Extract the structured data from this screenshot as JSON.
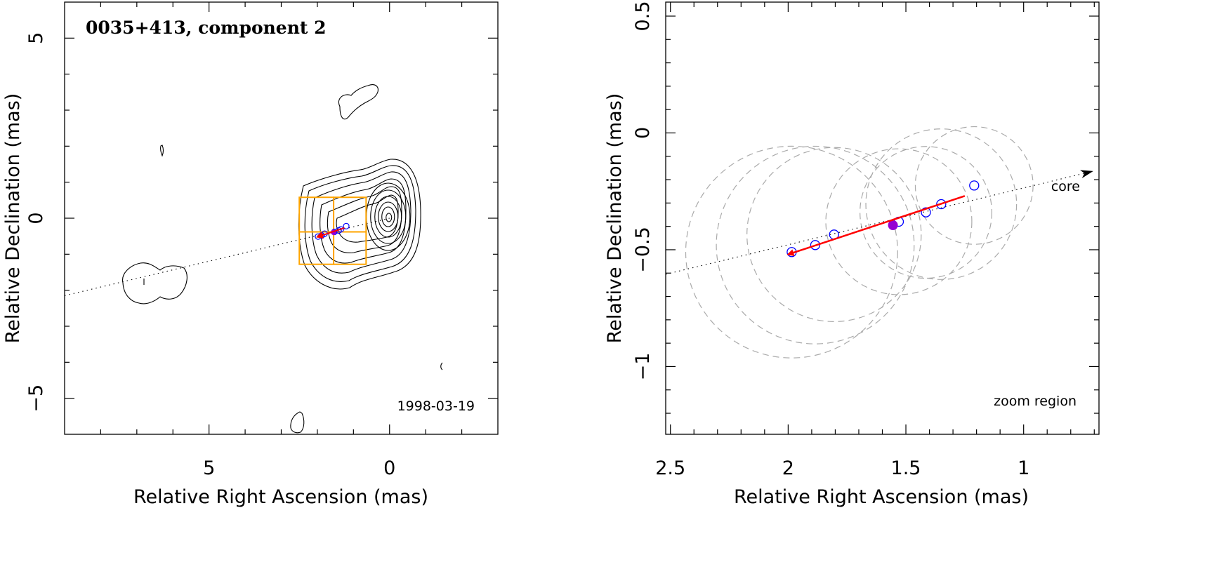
{
  "chart_data": [
    {
      "type": "contour",
      "title": "0035+413, component 2",
      "annotation": "1998-03-19",
      "xlabel": "Relative Right Ascension (mas)",
      "ylabel": "Relative Declination (mas)",
      "xlim": [
        9.0,
        -3.0
      ],
      "ylim": [
        -6.0,
        6.0
      ],
      "xticks": [
        5,
        0
      ],
      "xtick_labels": [
        "5",
        "0"
      ],
      "yticks": [
        5,
        0,
        -5
      ],
      "ytick_labels": [
        "5",
        "0",
        "−5"
      ],
      "x_reversed": true,
      "grid": false,
      "core": {
        "x": 0.0,
        "y": 0.0
      },
      "contour_levels": 9,
      "jet_axis": {
        "from": [
          9.0,
          -2.15
        ],
        "to": [
          0.0,
          0.0
        ]
      },
      "zoom_boxes": [
        {
          "x0": 2.5,
          "x1": 1.55,
          "y0": -0.38,
          "y1": 0.58
        },
        {
          "x0": 1.55,
          "x1": 0.65,
          "y0": -0.38,
          "y1": 0.58
        },
        {
          "x0": 2.5,
          "x1": 1.55,
          "y0": -1.28,
          "y1": -0.38
        },
        {
          "x0": 1.55,
          "x1": 0.65,
          "y0": -1.28,
          "y1": -0.38
        }
      ],
      "components": [
        {
          "x": 1.2,
          "y": -0.22
        },
        {
          "x": 1.35,
          "y": -0.31
        },
        {
          "x": 1.41,
          "y": -0.34
        },
        {
          "x": 1.53,
          "y": -0.38
        },
        {
          "x": 1.8,
          "y": -0.43
        },
        {
          "x": 1.88,
          "y": -0.48
        },
        {
          "x": 1.98,
          "y": -0.51
        }
      ],
      "highlight": {
        "x": 1.55,
        "y": -0.39
      },
      "velocity_arrow": {
        "from": [
          1.25,
          -0.27
        ],
        "to": [
          2.0,
          -0.52
        ]
      }
    },
    {
      "type": "scatter",
      "annotation": "zoom region",
      "core_label": "core",
      "xlabel": "Relative Right Ascension (mas)",
      "ylabel": "Relative Declination (mas)",
      "xlim": [
        2.52,
        0.68
      ],
      "ylim": [
        -1.29,
        0.56
      ],
      "xticks": [
        2.5,
        2,
        1.5,
        1
      ],
      "xtick_labels": [
        "2.5",
        "2",
        "1.5",
        "1"
      ],
      "yticks": [
        0.5,
        0,
        -0.5,
        -1
      ],
      "ytick_labels": [
        "0.5",
        "0",
        "−0.5",
        "−1"
      ],
      "x_reversed": true,
      "grid": false,
      "components": [
        {
          "x": 1.21,
          "y": -0.225
        },
        {
          "x": 1.35,
          "y": -0.305
        },
        {
          "x": 1.415,
          "y": -0.34
        },
        {
          "x": 1.53,
          "y": -0.38
        },
        {
          "x": 1.805,
          "y": -0.435
        },
        {
          "x": 1.885,
          "y": -0.48
        },
        {
          "x": 1.985,
          "y": -0.51
        }
      ],
      "highlight": {
        "x": 1.555,
        "y": -0.395
      },
      "uncertainty_circles": [
        {
          "x": 1.985,
          "y": -0.51,
          "r": 0.45
        },
        {
          "x": 1.885,
          "y": -0.48,
          "r": 0.42
        },
        {
          "x": 1.805,
          "y": -0.435,
          "r": 0.37
        },
        {
          "x": 1.53,
          "y": -0.38,
          "r": 0.31
        },
        {
          "x": 1.415,
          "y": -0.34,
          "r": 0.28
        },
        {
          "x": 1.35,
          "y": -0.305,
          "r": 0.32
        },
        {
          "x": 1.21,
          "y": -0.225,
          "r": 0.25
        }
      ],
      "jet_axis": {
        "from": [
          2.52,
          -0.605
        ],
        "to": [
          0.71,
          -0.165
        ]
      },
      "velocity_arrow": {
        "from": [
          1.25,
          -0.27
        ],
        "to": [
          2.0,
          -0.52
        ]
      }
    }
  ]
}
